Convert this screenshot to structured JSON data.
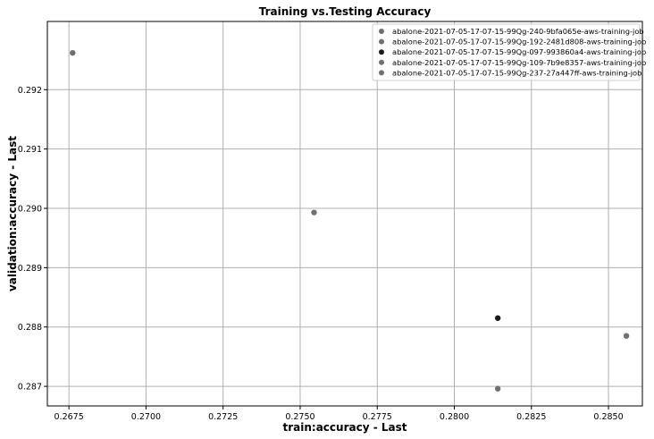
{
  "chart_data": {
    "type": "scatter",
    "title": "Training vs.Testing Accuracy",
    "xlabel": "train:accuracy - Last",
    "ylabel": "validation:accuracy - Last",
    "xlim": [
      0.2668,
      0.2861
    ],
    "ylim": [
      0.28667,
      0.29315
    ],
    "xticks": [
      0.2675,
      0.27,
      0.2725,
      0.275,
      0.2775,
      0.28,
      0.2825,
      0.285
    ],
    "xtick_labels": [
      "0.2675",
      "0.2700",
      "0.2725",
      "0.2750",
      "0.2775",
      "0.2800",
      "0.2825",
      "0.2850"
    ],
    "yticks": [
      0.287,
      0.288,
      0.289,
      0.29,
      0.291,
      0.292
    ],
    "ytick_labels": [
      "0.287",
      "0.288",
      "0.289",
      "0.290",
      "0.291",
      "0.292"
    ],
    "grid": true,
    "legend_position": "top-right",
    "series": [
      {
        "name": "abalone-2021-07-05-17-07-15-99Qg-240-9bfa065e-aws-training-job",
        "color": "#707070",
        "x": [
          0.28141
        ],
        "y": [
          0.28696
        ]
      },
      {
        "name": "abalone-2021-07-05-17-07-15-99Qg-192-2481d808-aws-training-job",
        "color": "#707070",
        "x": [
          0.27545
        ],
        "y": [
          0.28993
        ]
      },
      {
        "name": "abalone-2021-07-05-17-07-15-99Qg-097-993860a4-aws-training-job",
        "color": "#1a1a1a",
        "x": [
          0.28141
        ],
        "y": [
          0.28815
        ]
      },
      {
        "name": "abalone-2021-07-05-17-07-15-99Qg-109-7b9e8357-aws-training-job",
        "color": "#707070",
        "x": [
          0.26762
        ],
        "y": [
          0.29262
        ]
      },
      {
        "name": "abalone-2021-07-05-17-07-15-99Qg-237-27a447ff-aws-training-job",
        "color": "#707070",
        "x": [
          0.28558
        ],
        "y": [
          0.28785
        ]
      }
    ]
  }
}
